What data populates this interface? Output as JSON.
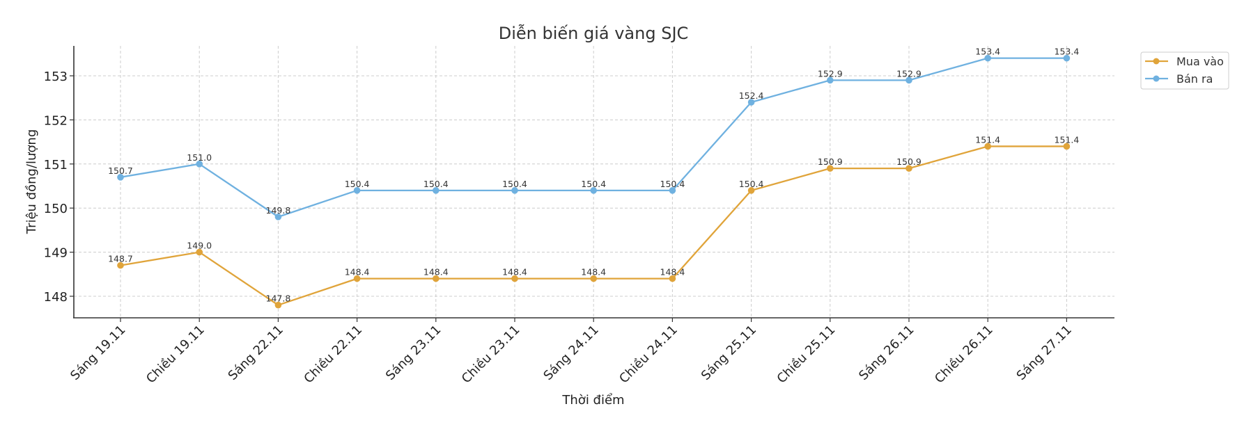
{
  "chart_data": {
    "type": "line",
    "title": "Diễn biến giá vàng SJC",
    "xlabel": "Thời điểm",
    "ylabel": "Triệu đồng/lượng",
    "categories": [
      "Sáng 19.11",
      "Chiều 19.11",
      "Sáng 22.11",
      "Chiều 22.11",
      "Sáng 23.11",
      "Chiều 23.11",
      "Sáng 24.11",
      "Chiều 24.11",
      "Sáng 25.11",
      "Chiều 25.11",
      "Sáng 26.11",
      "Chiều 26.11",
      "Sáng 27.11"
    ],
    "series": [
      {
        "name": "Mua vào",
        "color": "#e0a43a",
        "values": [
          148.7,
          149.0,
          147.8,
          148.4,
          148.4,
          148.4,
          148.4,
          148.4,
          150.4,
          150.9,
          150.9,
          151.4,
          151.4
        ]
      },
      {
        "name": "Bán ra",
        "color": "#6fb1e0",
        "values": [
          150.7,
          151.0,
          149.8,
          150.4,
          150.4,
          150.4,
          150.4,
          150.4,
          152.4,
          152.9,
          152.9,
          153.4,
          153.4
        ]
      }
    ],
    "yticks": [
      148,
      149,
      150,
      151,
      152,
      153
    ],
    "ylim": [
      147.48,
      153.67
    ],
    "grid": true,
    "legend_position": "upper right, outside plot"
  }
}
